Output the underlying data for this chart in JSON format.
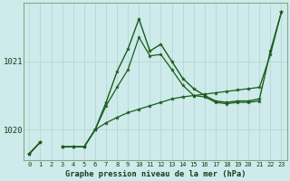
{
  "title": "Graphe pression niveau de la mer (hPa)",
  "background_color": "#ceeaea",
  "grid_color": "#aed4d4",
  "line_color": "#1a5c1a",
  "ylim": [
    1019.55,
    1021.85
  ],
  "yticks": [
    1020,
    1021
  ],
  "series1": [
    1019.65,
    1019.82,
    null,
    1019.75,
    1019.75,
    1019.75,
    1020.0,
    1020.4,
    1020.85,
    1021.18,
    1021.62,
    1021.15,
    1021.25,
    1021.0,
    1020.75,
    1020.6,
    1020.5,
    1020.42,
    1020.4,
    1020.42,
    1020.42,
    1020.45,
    1021.15,
    1021.72
  ],
  "series2": [
    1019.65,
    1019.82,
    null,
    1019.75,
    1019.75,
    1019.75,
    1020.0,
    1020.1,
    1020.18,
    1020.25,
    1020.3,
    1020.35,
    1020.4,
    1020.45,
    1020.48,
    1020.5,
    1020.52,
    1020.54,
    1020.56,
    1020.58,
    1020.6,
    1020.62,
    1021.1,
    1021.72
  ],
  "series3": [
    1019.65,
    1019.82,
    null,
    1019.75,
    1019.75,
    1019.75,
    1020.0,
    1020.35,
    1020.62,
    1020.88,
    1021.35,
    1021.08,
    1021.1,
    1020.88,
    1020.65,
    1020.5,
    1020.48,
    1020.4,
    1020.38,
    1020.4,
    1020.4,
    1020.42,
    null,
    null
  ]
}
